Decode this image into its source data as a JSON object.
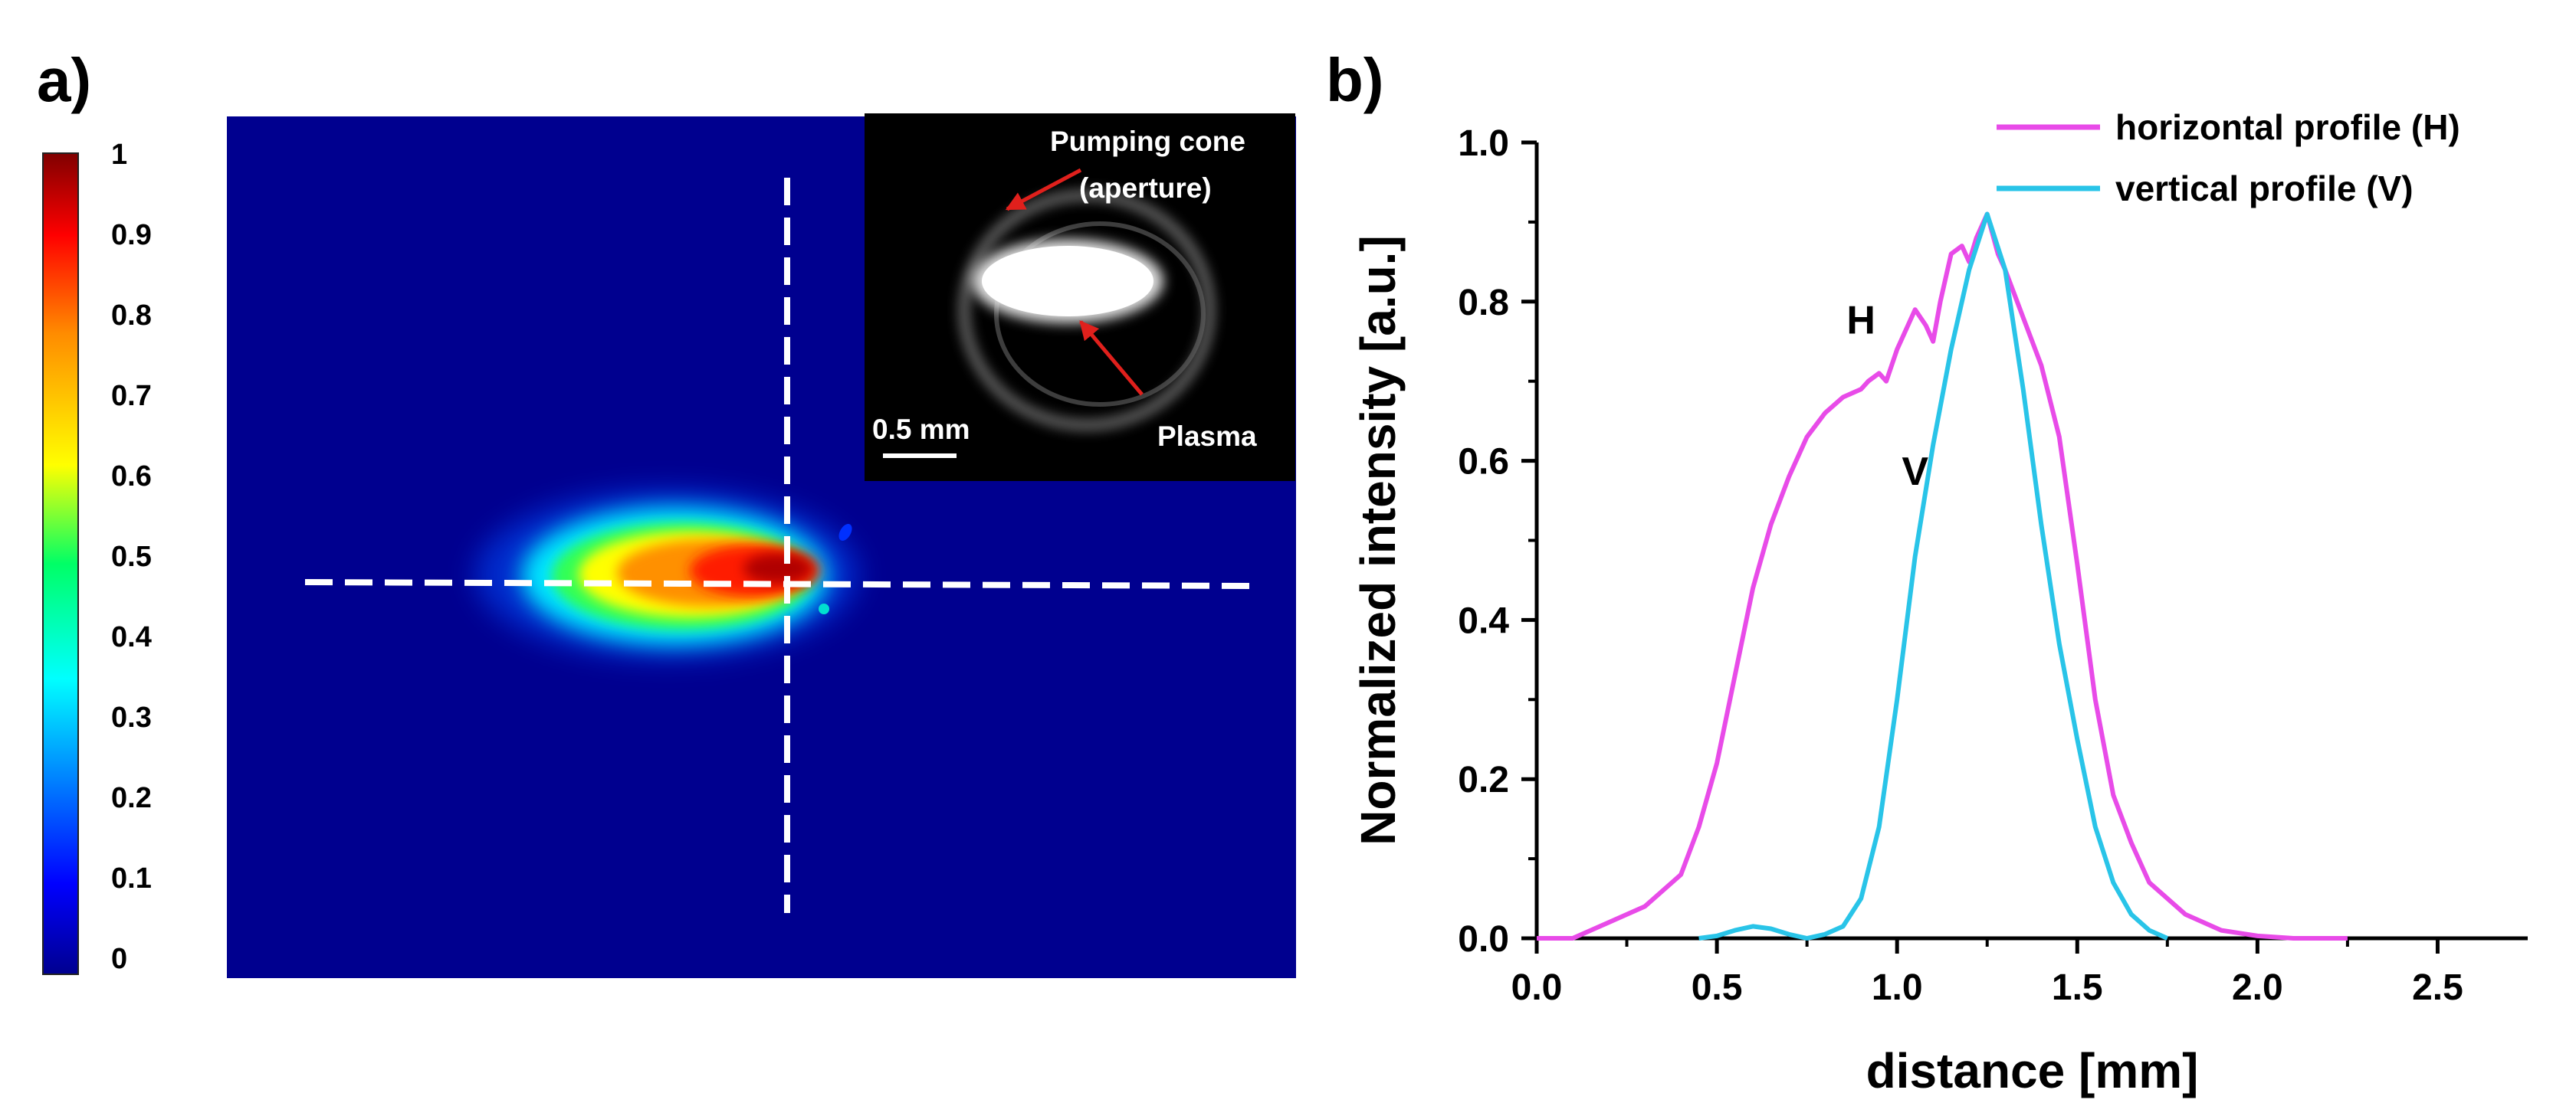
{
  "panel_a": {
    "label": "a)",
    "colorbar": {
      "ticks": [
        "1",
        "0.9",
        "0.8",
        "0.7",
        "0.6",
        "0.5",
        "0.4",
        "0.3",
        "0.2",
        "0.1",
        "0"
      ],
      "colormap": "jet"
    },
    "inset": {
      "label_cone_line1": "Pumping cone",
      "label_cone_line2": "(aperture)",
      "label_plasma": "Plasma",
      "scale_bar_label": "0.5 mm"
    },
    "colors": {
      "background": "#00008f",
      "dash_lines": "#ffffff",
      "arrow": "#e0201c"
    }
  },
  "panel_b": {
    "label": "b)"
  },
  "chart_data": {
    "type": "line",
    "title": "",
    "xlabel": "distance [mm]",
    "ylabel": "Normalized intensity [a.u.]",
    "xlim": [
      0,
      2.75
    ],
    "ylim": [
      0,
      1.0
    ],
    "xticks": [
      0.0,
      0.5,
      1.0,
      1.5,
      2.0,
      2.5
    ],
    "yticks": [
      0.0,
      0.2,
      0.4,
      0.6,
      0.8,
      1.0
    ],
    "xtick_labels": [
      "0.0",
      "0.5",
      "1.0",
      "1.5",
      "2.0",
      "2.5"
    ],
    "ytick_labels": [
      "0.0",
      "0.2",
      "0.4",
      "0.6",
      "0.8",
      "1.0"
    ],
    "legend_position": "top-right",
    "annotations": [
      {
        "text": "H",
        "x": 0.9,
        "y": 0.76
      },
      {
        "text": "V",
        "x": 1.05,
        "y": 0.57
      }
    ],
    "series": [
      {
        "name": "horizontal profile (H)",
        "color": "#e84be8",
        "x": [
          0.0,
          0.1,
          0.15,
          0.2,
          0.3,
          0.4,
          0.45,
          0.5,
          0.55,
          0.6,
          0.65,
          0.7,
          0.75,
          0.8,
          0.85,
          0.9,
          0.92,
          0.95,
          0.97,
          1.0,
          1.02,
          1.05,
          1.08,
          1.1,
          1.12,
          1.15,
          1.18,
          1.2,
          1.22,
          1.25,
          1.28,
          1.3,
          1.35,
          1.4,
          1.45,
          1.5,
          1.55,
          1.6,
          1.65,
          1.7,
          1.8,
          1.9,
          2.0,
          2.1,
          2.2,
          2.25
        ],
        "y": [
          0.0,
          0.0,
          0.01,
          0.02,
          0.04,
          0.08,
          0.14,
          0.22,
          0.33,
          0.44,
          0.52,
          0.58,
          0.63,
          0.66,
          0.68,
          0.69,
          0.7,
          0.71,
          0.7,
          0.74,
          0.76,
          0.79,
          0.77,
          0.75,
          0.8,
          0.86,
          0.87,
          0.85,
          0.88,
          0.91,
          0.86,
          0.84,
          0.78,
          0.72,
          0.63,
          0.47,
          0.3,
          0.18,
          0.12,
          0.07,
          0.03,
          0.01,
          0.003,
          0.0,
          0.0,
          0.0
        ]
      },
      {
        "name": "vertical profile (V)",
        "color": "#29c4e8",
        "x": [
          0.45,
          0.5,
          0.55,
          0.6,
          0.65,
          0.7,
          0.75,
          0.8,
          0.85,
          0.9,
          0.95,
          1.0,
          1.05,
          1.1,
          1.15,
          1.2,
          1.25,
          1.3,
          1.35,
          1.4,
          1.45,
          1.5,
          1.55,
          1.6,
          1.65,
          1.7,
          1.75
        ],
        "y": [
          0.0,
          0.003,
          0.01,
          0.015,
          0.012,
          0.005,
          0.0,
          0.005,
          0.015,
          0.05,
          0.14,
          0.3,
          0.48,
          0.62,
          0.74,
          0.84,
          0.91,
          0.84,
          0.69,
          0.52,
          0.37,
          0.25,
          0.14,
          0.07,
          0.03,
          0.01,
          0.0
        ]
      }
    ]
  }
}
